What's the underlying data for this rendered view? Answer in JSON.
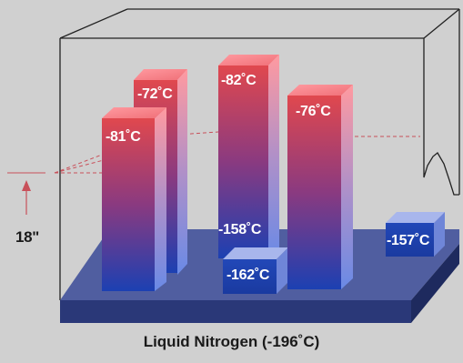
{
  "temperatures": {
    "col_a_top": "-81˚C",
    "col_b_top": "-72˚C",
    "col_c_top": "-82˚C",
    "col_c_bottom": "-158˚C",
    "col_d_top": "-76˚C",
    "short_block": "-162˚C",
    "side_block": "-157˚C"
  },
  "height_marker": "18\"",
  "caption": "Liquid Nitrogen (-196˚C)",
  "colors": {
    "background": "#d0d0d0",
    "column_warm": "#e0484e",
    "column_cold": "#1a3fb0",
    "base_plate": "#3a4a8c",
    "cabinet_outline": "#222222",
    "guide_line": "#c8505a"
  }
}
